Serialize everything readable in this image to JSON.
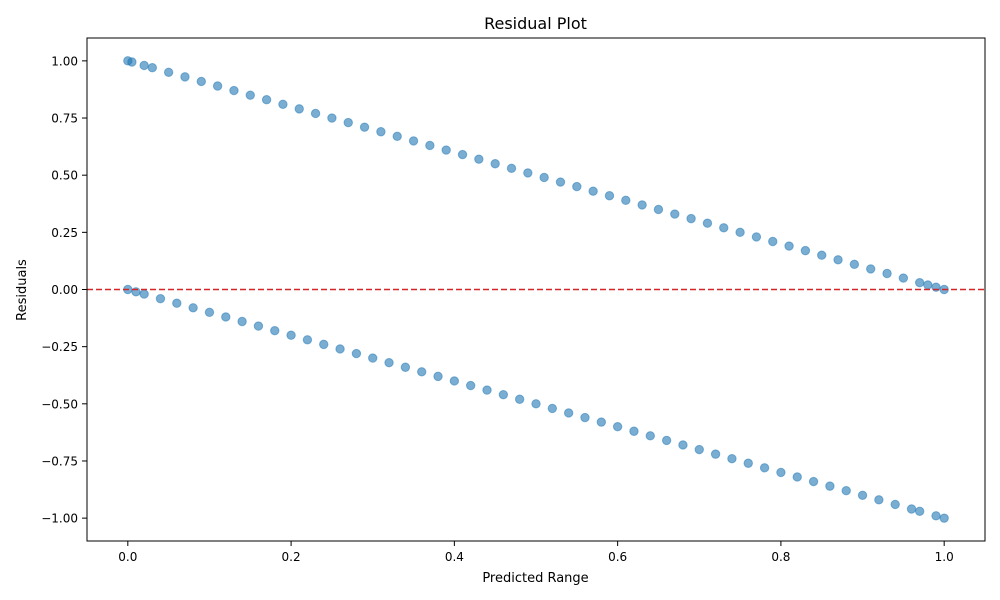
{
  "chart_data": {
    "type": "scatter",
    "title": "Residual Plot",
    "xlabel": "Predicted Range",
    "ylabel": "Residuals",
    "xlim": [
      -0.05,
      1.05
    ],
    "ylim": [
      -1.1,
      1.1
    ],
    "xticks": [
      0.0,
      0.2,
      0.4,
      0.6,
      0.8,
      1.0
    ],
    "xtick_labels": [
      "0.0",
      "0.2",
      "0.4",
      "0.6",
      "0.8",
      "1.0"
    ],
    "yticks": [
      -1.0,
      -0.75,
      -0.5,
      -0.25,
      0.0,
      0.25,
      0.5,
      0.75,
      1.0
    ],
    "ytick_labels": [
      "−1.00",
      "−0.75",
      "−0.50",
      "−0.25",
      "0.00",
      "0.25",
      "0.50",
      "0.75",
      "1.00"
    ],
    "grid": false,
    "reference_line": {
      "y": 0.0,
      "color": "#d62728",
      "style": "dashed"
    },
    "point_color": "#1f77b4",
    "point_alpha": 0.6,
    "series": [
      {
        "points": [
          [
            0.0,
            1.0
          ],
          [
            0.005,
            0.995
          ],
          [
            0.02,
            0.98
          ],
          [
            0.03,
            0.97
          ],
          [
            0.05,
            0.95
          ],
          [
            0.07,
            0.93
          ],
          [
            0.09,
            0.91
          ],
          [
            0.11,
            0.89
          ],
          [
            0.13,
            0.87
          ],
          [
            0.15,
            0.85
          ],
          [
            0.17,
            0.83
          ],
          [
            0.19,
            0.81
          ],
          [
            0.21,
            0.79
          ],
          [
            0.23,
            0.77
          ],
          [
            0.25,
            0.75
          ],
          [
            0.27,
            0.73
          ],
          [
            0.29,
            0.71
          ],
          [
            0.31,
            0.69
          ],
          [
            0.33,
            0.67
          ],
          [
            0.35,
            0.65
          ],
          [
            0.37,
            0.63
          ],
          [
            0.39,
            0.61
          ],
          [
            0.41,
            0.59
          ],
          [
            0.43,
            0.57
          ],
          [
            0.45,
            0.55
          ],
          [
            0.47,
            0.53
          ],
          [
            0.49,
            0.51
          ],
          [
            0.51,
            0.49
          ],
          [
            0.53,
            0.47
          ],
          [
            0.55,
            0.45
          ],
          [
            0.57,
            0.43
          ],
          [
            0.59,
            0.41
          ],
          [
            0.61,
            0.39
          ],
          [
            0.63,
            0.37
          ],
          [
            0.65,
            0.35
          ],
          [
            0.67,
            0.33
          ],
          [
            0.69,
            0.31
          ],
          [
            0.71,
            0.29
          ],
          [
            0.73,
            0.27
          ],
          [
            0.75,
            0.25
          ],
          [
            0.77,
            0.23
          ],
          [
            0.79,
            0.21
          ],
          [
            0.81,
            0.19
          ],
          [
            0.83,
            0.17
          ],
          [
            0.85,
            0.15
          ],
          [
            0.87,
            0.13
          ],
          [
            0.89,
            0.11
          ],
          [
            0.91,
            0.09
          ],
          [
            0.93,
            0.07
          ],
          [
            0.95,
            0.05
          ],
          [
            0.97,
            0.03
          ],
          [
            0.98,
            0.02
          ],
          [
            0.99,
            0.01
          ],
          [
            1.0,
            0.0
          ]
        ]
      },
      {
        "points": [
          [
            0.0,
            0.0
          ],
          [
            0.01,
            -0.01
          ],
          [
            0.02,
            -0.02
          ],
          [
            0.04,
            -0.04
          ],
          [
            0.06,
            -0.06
          ],
          [
            0.08,
            -0.08
          ],
          [
            0.1,
            -0.1
          ],
          [
            0.12,
            -0.12
          ],
          [
            0.14,
            -0.14
          ],
          [
            0.16,
            -0.16
          ],
          [
            0.18,
            -0.18
          ],
          [
            0.2,
            -0.2
          ],
          [
            0.22,
            -0.22
          ],
          [
            0.24,
            -0.24
          ],
          [
            0.26,
            -0.26
          ],
          [
            0.28,
            -0.28
          ],
          [
            0.3,
            -0.3
          ],
          [
            0.32,
            -0.32
          ],
          [
            0.34,
            -0.34
          ],
          [
            0.36,
            -0.36
          ],
          [
            0.38,
            -0.38
          ],
          [
            0.4,
            -0.4
          ],
          [
            0.42,
            -0.42
          ],
          [
            0.44,
            -0.44
          ],
          [
            0.46,
            -0.46
          ],
          [
            0.48,
            -0.48
          ],
          [
            0.5,
            -0.5
          ],
          [
            0.52,
            -0.52
          ],
          [
            0.54,
            -0.54
          ],
          [
            0.56,
            -0.56
          ],
          [
            0.58,
            -0.58
          ],
          [
            0.6,
            -0.6
          ],
          [
            0.62,
            -0.62
          ],
          [
            0.64,
            -0.64
          ],
          [
            0.66,
            -0.66
          ],
          [
            0.68,
            -0.68
          ],
          [
            0.7,
            -0.7
          ],
          [
            0.72,
            -0.72
          ],
          [
            0.74,
            -0.74
          ],
          [
            0.76,
            -0.76
          ],
          [
            0.78,
            -0.78
          ],
          [
            0.8,
            -0.8
          ],
          [
            0.82,
            -0.82
          ],
          [
            0.84,
            -0.84
          ],
          [
            0.86,
            -0.86
          ],
          [
            0.88,
            -0.88
          ],
          [
            0.9,
            -0.9
          ],
          [
            0.92,
            -0.92
          ],
          [
            0.94,
            -0.94
          ],
          [
            0.96,
            -0.96
          ],
          [
            0.97,
            -0.97
          ],
          [
            0.99,
            -0.99
          ],
          [
            1.0,
            -1.0
          ]
        ]
      }
    ]
  }
}
